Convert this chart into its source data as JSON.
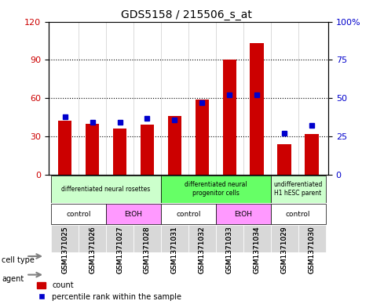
{
  "title": "GDS5158 / 215506_s_at",
  "samples": [
    "GSM1371025",
    "GSM1371026",
    "GSM1371027",
    "GSM1371028",
    "GSM1371031",
    "GSM1371032",
    "GSM1371033",
    "GSM1371034",
    "GSM1371029",
    "GSM1371030"
  ],
  "counts": [
    42,
    40,
    36,
    39,
    46,
    59,
    90,
    103,
    24,
    32
  ],
  "percentile_ranks": [
    38,
    34,
    34,
    37,
    36,
    47,
    52,
    52,
    27,
    32
  ],
  "left_ylim": [
    0,
    120
  ],
  "right_ylim": [
    0,
    100
  ],
  "left_yticks": [
    0,
    30,
    60,
    90,
    120
  ],
  "right_yticks": [
    0,
    25,
    50,
    75,
    100
  ],
  "right_yticklabels": [
    "0",
    "25",
    "50",
    "75",
    "100%"
  ],
  "bar_color": "#cc0000",
  "dot_color": "#0000cc",
  "grid_color": "#000000",
  "cell_type_groups": [
    {
      "label": "differentiated neural rosettes",
      "start": 0,
      "end": 4,
      "color": "#ccffcc"
    },
    {
      "label": "differentiated neural\nprogenitor cells",
      "start": 4,
      "end": 8,
      "color": "#66ff66"
    },
    {
      "label": "undifferentiated\nH1 hESC parent",
      "start": 8,
      "end": 10,
      "color": "#ccffcc"
    }
  ],
  "agent_groups": [
    {
      "label": "control",
      "start": 0,
      "end": 2,
      "color": "#ffffff"
    },
    {
      "label": "EtOH",
      "start": 2,
      "end": 4,
      "color": "#ff99ff"
    },
    {
      "label": "control",
      "start": 4,
      "end": 6,
      "color": "#ffffff"
    },
    {
      "label": "EtOH",
      "start": 6,
      "end": 8,
      "color": "#ff99ff"
    },
    {
      "label": "control",
      "start": 8,
      "end": 10,
      "color": "#ffffff"
    }
  ],
  "row_labels": [
    "cell type",
    "agent"
  ],
  "legend_items": [
    "count",
    "percentile rank within the sample"
  ],
  "background_color": "#ffffff",
  "plot_bg_color": "#ffffff",
  "tick_label_color_left": "#cc0000",
  "tick_label_color_right": "#0000cc"
}
